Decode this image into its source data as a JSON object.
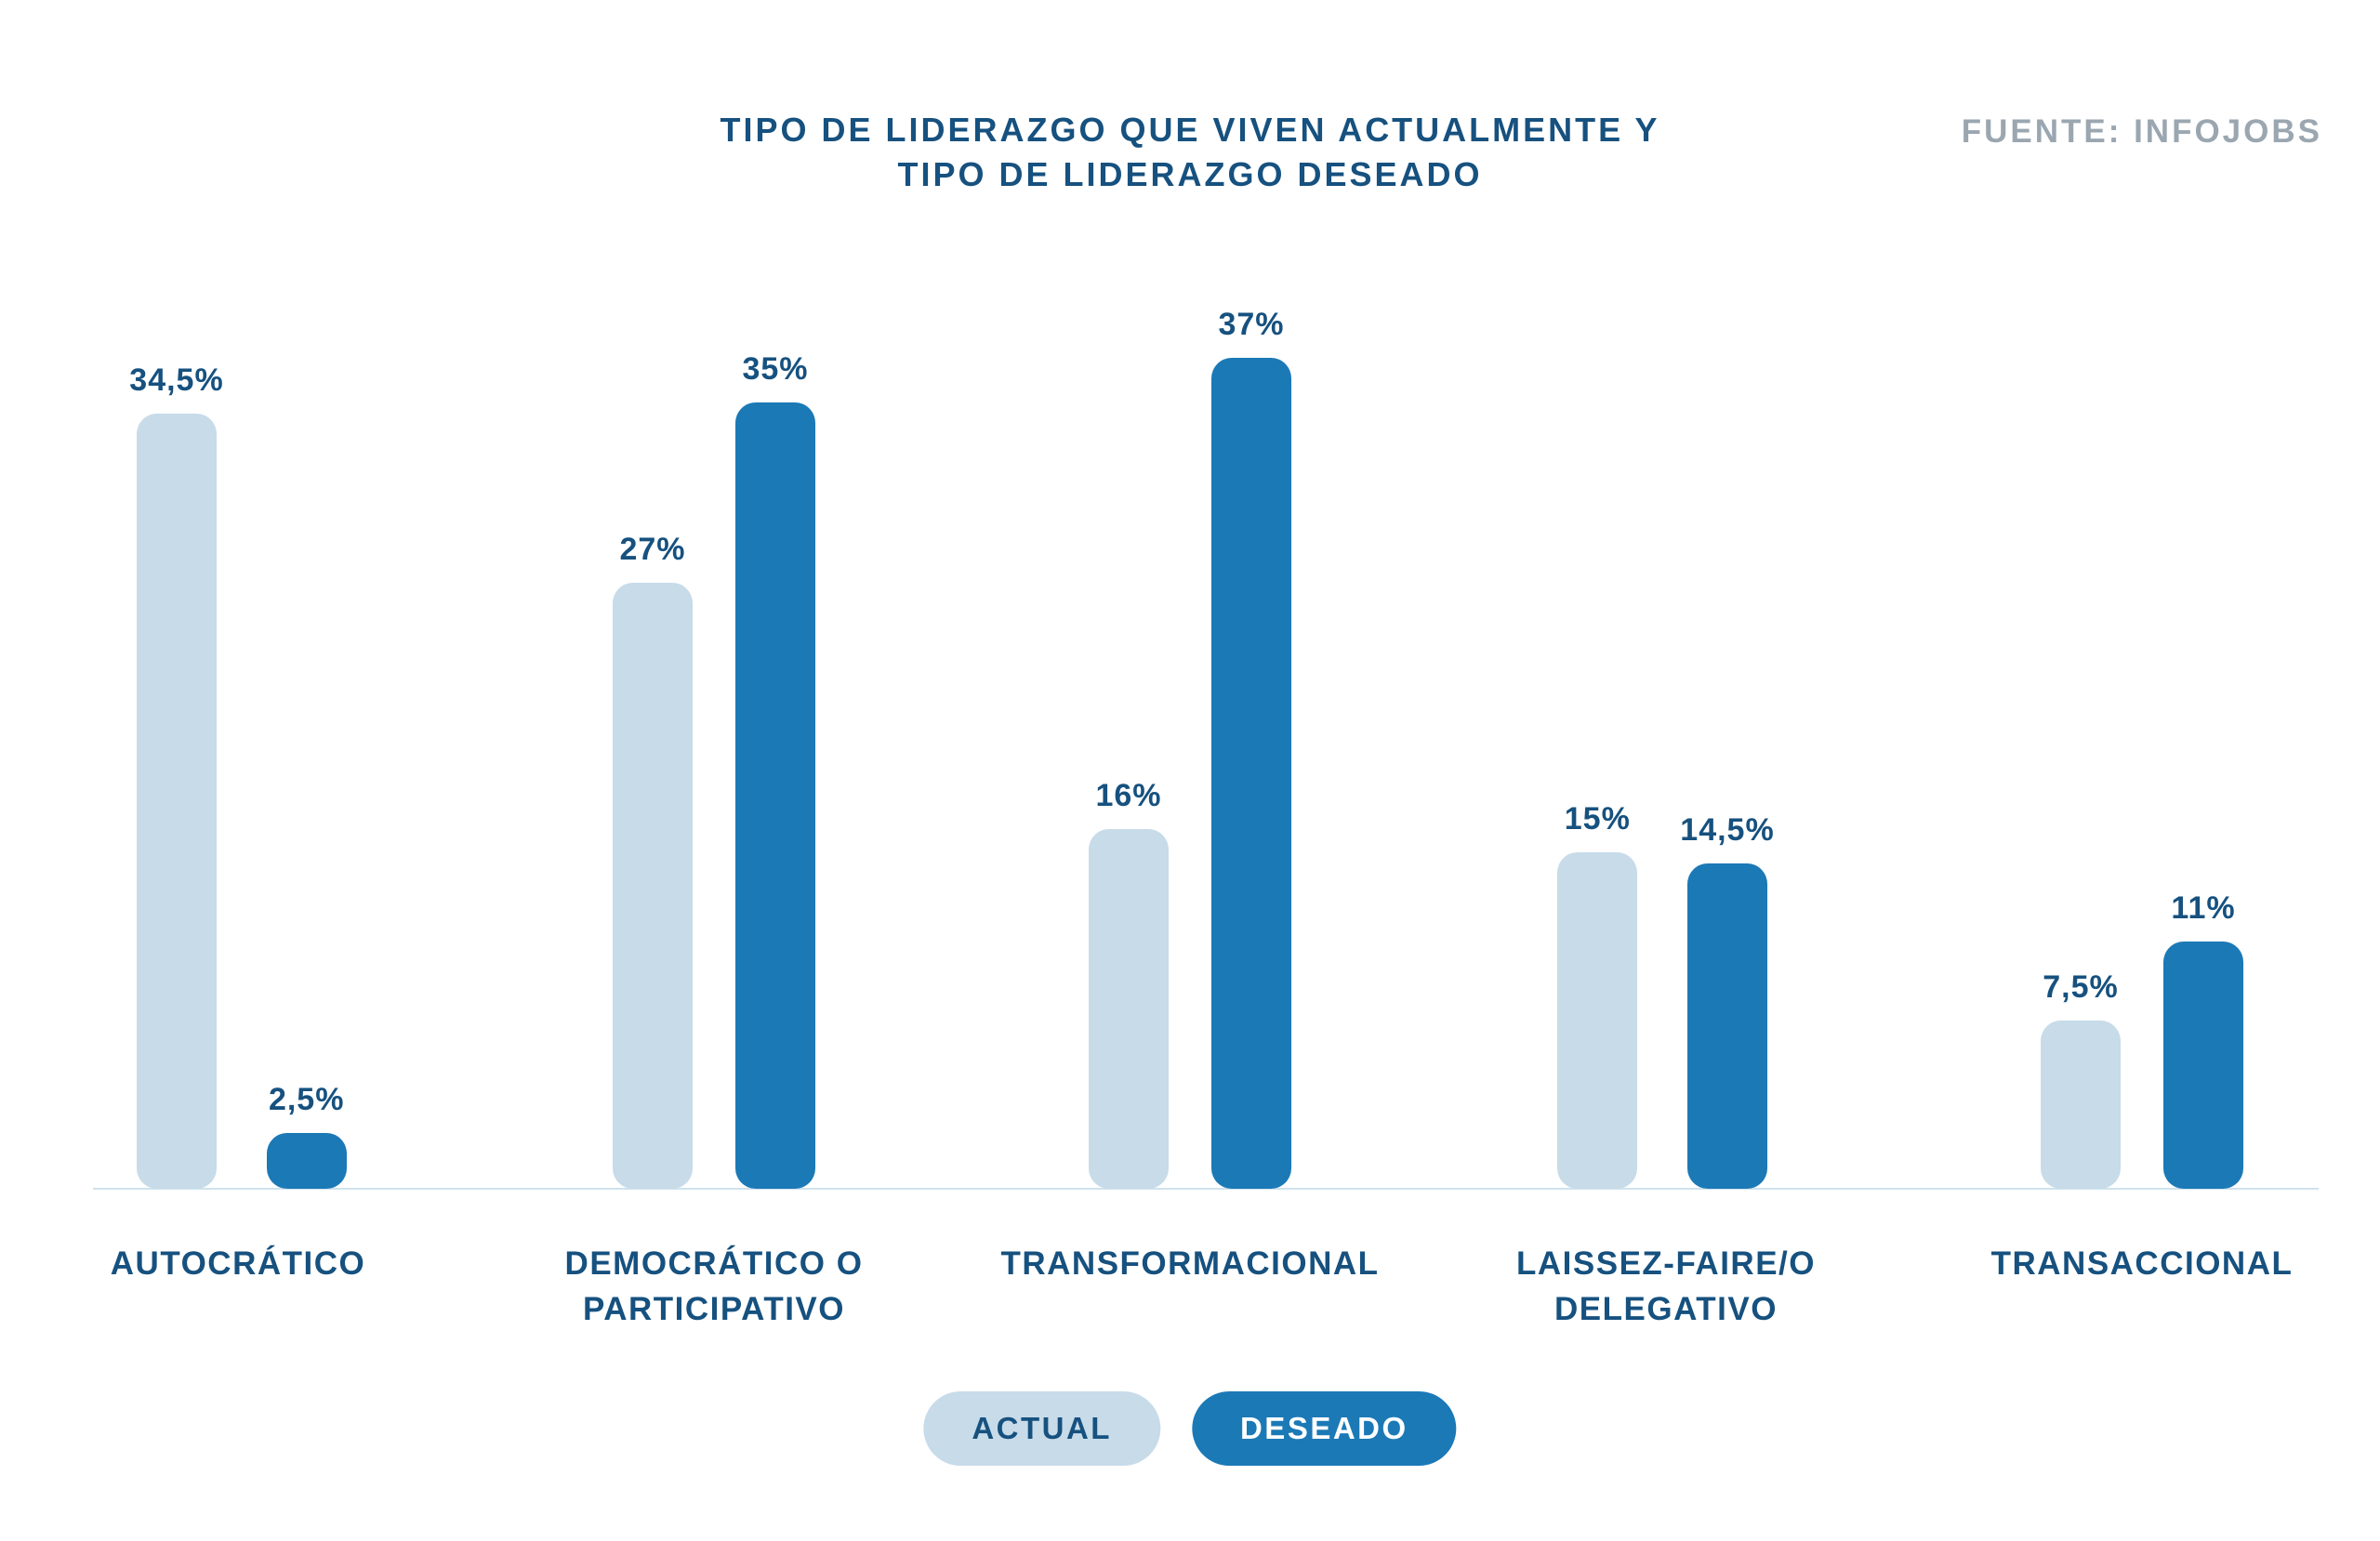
{
  "header": {
    "title_lines": [
      "TIPO DE LIDERAZGO QUE VIVEN ACTUALMENTE Y",
      "TIPO DE LIDERAZGO DESEADO"
    ],
    "source": "FUENTE: INFOJOBS"
  },
  "colors": {
    "actual_bar": "#c7dbe9",
    "deseado_bar": "#1b79b6",
    "text_navy": "#16517f",
    "source_gray": "#9aa6b0",
    "baseline": "#cfe2ee"
  },
  "chart_data": {
    "type": "bar",
    "title": "TIPO DE LIDERAZGO QUE VIVEN ACTUALMENTE Y TIPO DE LIDERAZGO DESEADO",
    "source": "FUENTE: INFOJOBS",
    "categories": [
      "AUTOCRÁTICO",
      "DEMOCRÁTICO O PARTICIPATIVO",
      "TRANSFORMACIONAL",
      "LAISSEZ-FAIRE/O DELEGATIVO",
      "TRANSACCIONAL"
    ],
    "series": [
      {
        "name": "ACTUAL",
        "color": "#c7dbe9",
        "values": [
          34.5,
          27,
          16,
          15,
          7.5
        ],
        "labels": [
          "34,5%",
          "27%",
          "16%",
          "15%",
          "7,5%"
        ]
      },
      {
        "name": "DESEADO",
        "color": "#1b79b6",
        "values": [
          2.5,
          35,
          37,
          14.5,
          11
        ],
        "labels": [
          "2,5%",
          "35%",
          "37%",
          "14,5%",
          "11%"
        ]
      }
    ],
    "ylim": [
      0,
      37
    ],
    "grid": false,
    "value_labels": true,
    "legend_position": "bottom"
  }
}
